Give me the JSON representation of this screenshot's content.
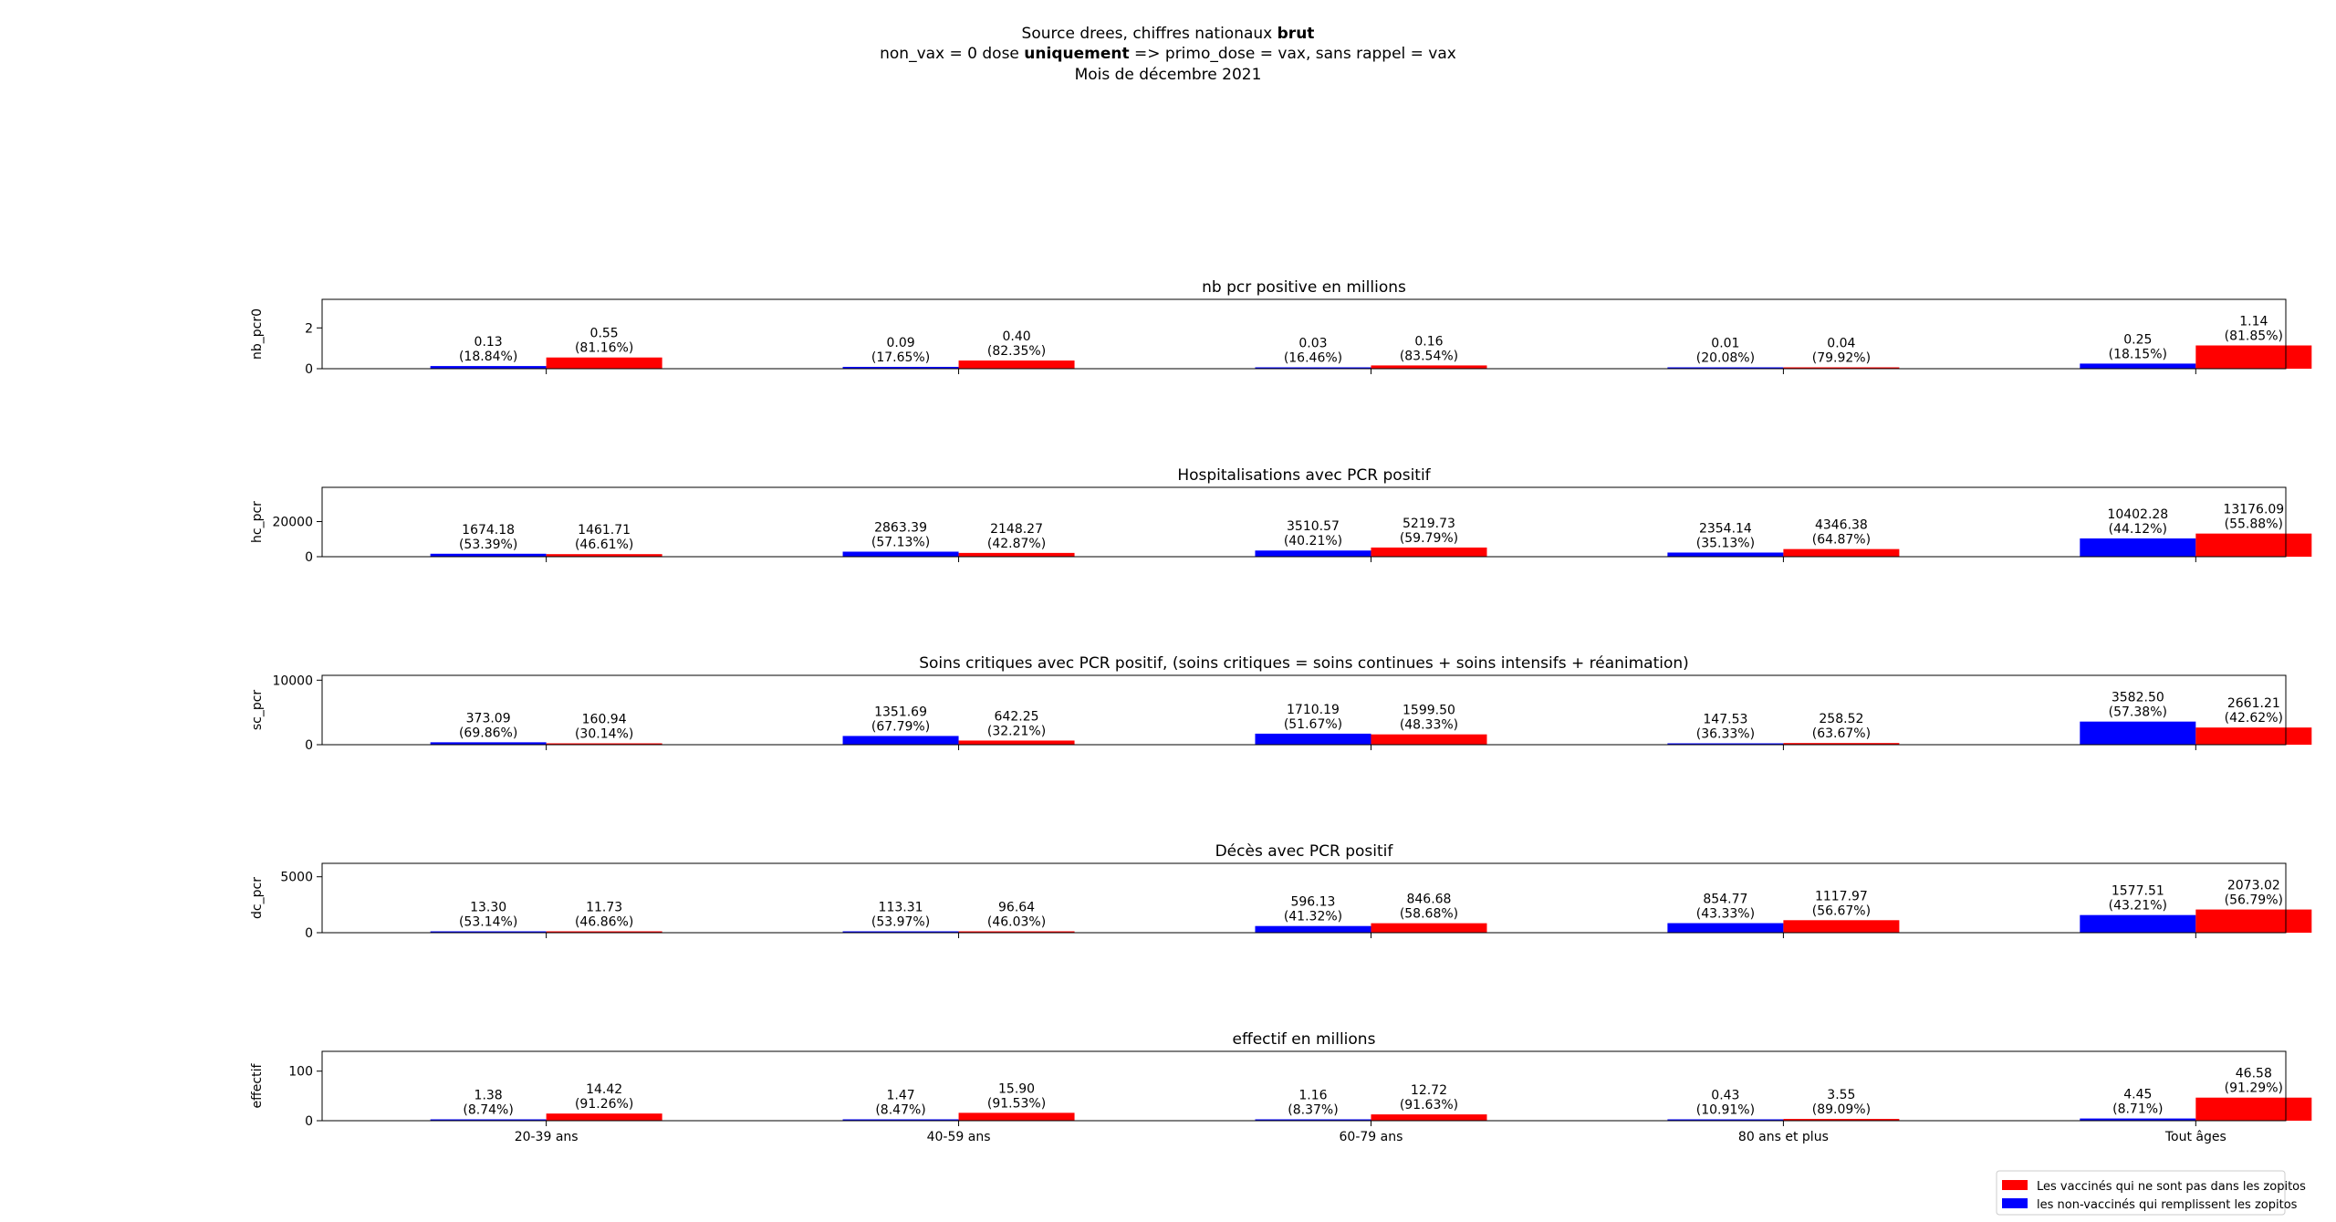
{
  "header": {
    "line1_prefix": "Source drees, chiffres nationaux ",
    "line1_bold": "brut",
    "line2_prefix": "non_vax = 0 dose ",
    "line2_bold": "uniquement",
    "line2_suffix": " => primo_dose = vax, sans rappel = vax",
    "line3": "Mois de décembre 2021"
  },
  "legend": {
    "position": "bottom-right",
    "entries": [
      {
        "label": "Les vaccinés qui ne sont pas dans les zopitos",
        "color": "#ff0000"
      },
      {
        "label": "les non-vaccinés qui remplissent les zopitos",
        "color": "#0000ff"
      }
    ]
  },
  "colors": {
    "non_vax": "#0000ff",
    "vax": "#ff0000"
  },
  "chart_data": [
    {
      "type": "bar",
      "title": "nb pcr positive en millions",
      "ylabel": "nb_pcr0",
      "categories": [
        "20-39 ans",
        "40-59 ans",
        "60-79 ans",
        "80 ans et plus",
        "Tout âges"
      ],
      "ylim": [
        0,
        3.4
      ],
      "yticks": [
        0,
        2
      ],
      "series": [
        {
          "key": "non_vax",
          "values": [
            0.13,
            0.09,
            0.03,
            0.01,
            0.25
          ],
          "labels": [
            "0.13",
            "0.09",
            "0.03",
            "0.01",
            "0.25"
          ],
          "pcts": [
            "(18.84%)",
            "(17.65%)",
            "(16.46%)",
            "(20.08%)",
            "(18.15%)"
          ]
        },
        {
          "key": "vax",
          "values": [
            0.55,
            0.4,
            0.16,
            0.04,
            1.14
          ],
          "labels": [
            "0.55",
            "0.40",
            "0.16",
            "0.04",
            "1.14"
          ],
          "pcts": [
            "(81.16%)",
            "(82.35%)",
            "(83.54%)",
            "(79.92%)",
            "(81.85%)"
          ]
        }
      ]
    },
    {
      "type": "bar",
      "title": "Hospitalisations avec PCR positif",
      "ylabel": "hc_pcr",
      "categories": [
        "20-39 ans",
        "40-59 ans",
        "60-79 ans",
        "80 ans et plus",
        "Tout âges"
      ],
      "ylim": [
        0,
        39500
      ],
      "yticks": [
        0,
        20000
      ],
      "series": [
        {
          "key": "non_vax",
          "values": [
            1674.18,
            2863.39,
            3510.57,
            2354.14,
            10402.28
          ],
          "labels": [
            "1674.18",
            "2863.39",
            "3510.57",
            "2354.14",
            "10402.28"
          ],
          "pcts": [
            "(53.39%)",
            "(57.13%)",
            "(40.21%)",
            "(35.13%)",
            "(44.12%)"
          ]
        },
        {
          "key": "vax",
          "values": [
            1461.71,
            2148.27,
            5219.73,
            4346.38,
            13176.09
          ],
          "labels": [
            "1461.71",
            "2148.27",
            "5219.73",
            "4346.38",
            "13176.09"
          ],
          "pcts": [
            "(46.61%)",
            "(42.87%)",
            "(59.79%)",
            "(64.87%)",
            "(55.88%)"
          ]
        }
      ]
    },
    {
      "type": "bar",
      "title": "Soins critiques  avec PCR positif, (soins critiques = soins continues + soins intensifs + réanimation)",
      "ylabel": "sc_pcr",
      "categories": [
        "20-39 ans",
        "40-59 ans",
        "60-79 ans",
        "80 ans et plus",
        "Tout âges"
      ],
      "ylim": [
        0,
        10750
      ],
      "yticks": [
        0,
        10000
      ],
      "series": [
        {
          "key": "non_vax",
          "values": [
            373.09,
            1351.69,
            1710.19,
            147.53,
            3582.5
          ],
          "labels": [
            "373.09",
            "1351.69",
            "1710.19",
            "147.53",
            "3582.50"
          ],
          "pcts": [
            "(69.86%)",
            "(67.79%)",
            "(51.67%)",
            "(36.33%)",
            "(57.38%)"
          ]
        },
        {
          "key": "vax",
          "values": [
            160.94,
            642.25,
            1599.5,
            258.52,
            2661.21
          ],
          "labels": [
            "160.94",
            "642.25",
            "1599.50",
            "258.52",
            "2661.21"
          ],
          "pcts": [
            "(30.14%)",
            "(32.21%)",
            "(48.33%)",
            "(63.67%)",
            "(42.62%)"
          ]
        }
      ]
    },
    {
      "type": "bar",
      "title": "Décès avec PCR positif",
      "ylabel": "dc_pcr",
      "categories": [
        "20-39 ans",
        "40-59 ans",
        "60-79 ans",
        "80 ans et plus",
        "Tout âges"
      ],
      "ylim": [
        0,
        6200
      ],
      "yticks": [
        0,
        5000
      ],
      "series": [
        {
          "key": "non_vax",
          "values": [
            13.3,
            113.31,
            596.13,
            854.77,
            1577.51
          ],
          "labels": [
            "13.30",
            "113.31",
            "596.13",
            "854.77",
            "1577.51"
          ],
          "pcts": [
            "(53.14%)",
            "(53.97%)",
            "(41.32%)",
            "(43.33%)",
            "(43.21%)"
          ]
        },
        {
          "key": "vax",
          "values": [
            11.73,
            96.64,
            846.68,
            1117.97,
            2073.02
          ],
          "labels": [
            "11.73",
            "96.64",
            "846.68",
            "1117.97",
            "2073.02"
          ],
          "pcts": [
            "(46.86%)",
            "(46.03%)",
            "(58.68%)",
            "(56.67%)",
            "(56.79%)"
          ]
        }
      ]
    },
    {
      "type": "bar",
      "title": "effectif en millions",
      "ylabel": "effectif",
      "categories": [
        "20-39 ans",
        "40-59 ans",
        "60-79 ans",
        "80 ans et plus",
        "Tout âges"
      ],
      "ylim": [
        0,
        140
      ],
      "yticks": [
        0,
        100
      ],
      "show_xticklabels": true,
      "series": [
        {
          "key": "non_vax",
          "values": [
            1.38,
            1.47,
            1.16,
            0.43,
            4.45
          ],
          "labels": [
            "1.38",
            "1.47",
            "1.16",
            "0.43",
            "4.45"
          ],
          "pcts": [
            "(8.74%)",
            "(8.47%)",
            "(8.37%)",
            "(10.91%)",
            "(8.71%)"
          ]
        },
        {
          "key": "vax",
          "values": [
            14.42,
            15.9,
            12.72,
            3.55,
            46.58
          ],
          "labels": [
            "14.42",
            "15.90",
            "12.72",
            "3.55",
            "46.58"
          ],
          "pcts": [
            "(91.26%)",
            "(91.53%)",
            "(91.63%)",
            "(89.09%)",
            "(91.29%)"
          ]
        }
      ]
    }
  ]
}
